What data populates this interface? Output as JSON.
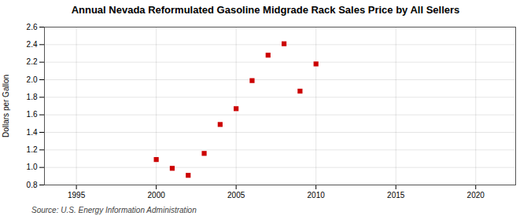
{
  "chart_data": {
    "type": "scatter",
    "title": "Annual Nevada Reformulated Gasoline Midgrade Rack Sales Price by All Sellers",
    "ylabel": "Dollars per Gallon",
    "source": "Source: U.S. Energy Information Administration",
    "x": [
      2000,
      2001,
      2002,
      2003,
      2004,
      2005,
      2006,
      2007,
      2008,
      2009,
      2010
    ],
    "values": [
      1.09,
      0.99,
      0.91,
      1.16,
      1.49,
      1.67,
      1.99,
      2.28,
      2.41,
      1.87,
      2.18
    ],
    "color": "#cc0000",
    "marker": "square",
    "xlim": [
      1993,
      2022.5
    ],
    "ylim": [
      0.8,
      2.6
    ],
    "xticks": [
      1995,
      2000,
      2005,
      2010,
      2015,
      2020
    ],
    "yticks": [
      0.8,
      {
        "value": 1.0,
        "label": "1.0"
      },
      1.2,
      1.4,
      1.6,
      1.8,
      {
        "value": 2.0,
        "label": "2.0"
      },
      2.2,
      2.4,
      2.6
    ],
    "grid": true
  }
}
